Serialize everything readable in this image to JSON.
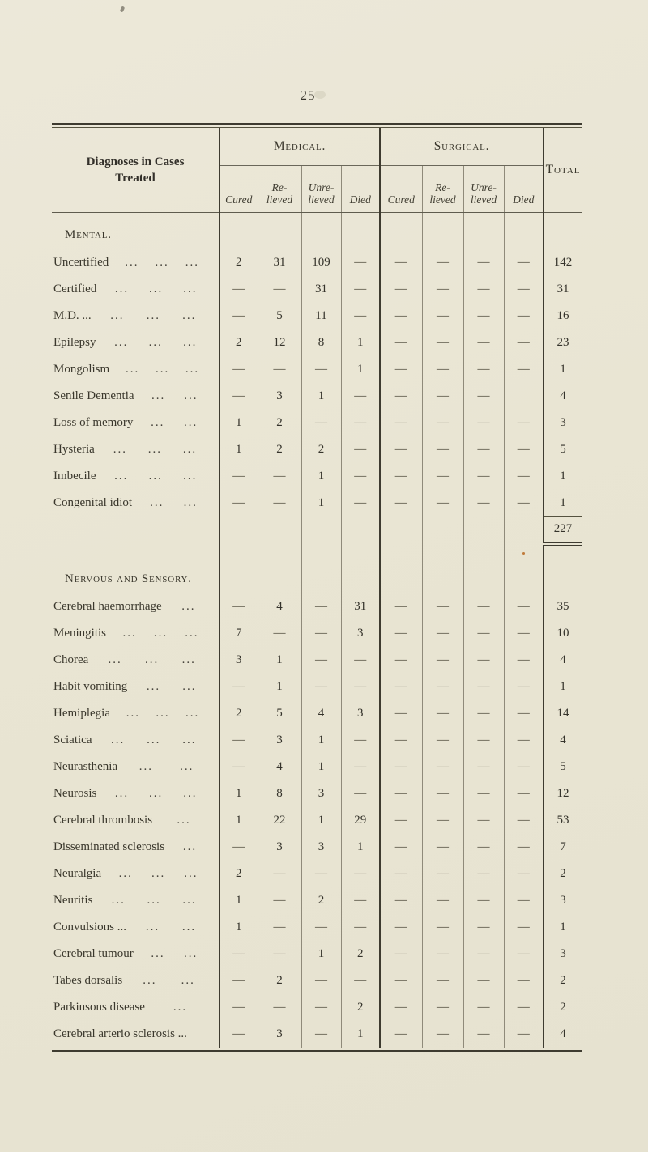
{
  "page": {
    "number": "25"
  },
  "table": {
    "leader_glyph": "...",
    "header": {
      "diagnoses": "Diagnoses in Cases\nTreated",
      "groups": [
        {
          "label": "Medical."
        },
        {
          "label": "Surgical."
        }
      ],
      "subheaders": [
        "Cured",
        "Re-\nlieved",
        "Unre-\nlieved",
        "Died"
      ],
      "total": "Total"
    },
    "columns": [
      "Diagnoses in Cases Treated",
      "Medical Cured",
      "Medical Relieved",
      "Medical Unrelieved",
      "Medical Died",
      "Surgical Cured",
      "Surgical Relieved",
      "Surgical Unrelieved",
      "Surgical Died",
      "Total"
    ],
    "sections": [
      {
        "title": "Mental.",
        "rows": [
          {
            "label": "Uncertified",
            "leaders": 3,
            "cells": [
              "2",
              "31",
              "109",
              "—",
              "—",
              "—",
              "—",
              "—"
            ],
            "total": "142"
          },
          {
            "label": "Certified",
            "leaders": 3,
            "cells": [
              "—",
              "—",
              "31",
              "—",
              "—",
              "—",
              "—",
              "—"
            ],
            "total": "31"
          },
          {
            "label": "M.D. ...",
            "leaders": 3,
            "cells": [
              "—",
              "5",
              "11",
              "—",
              "—",
              "—",
              "—",
              "—"
            ],
            "total": "16"
          },
          {
            "label": "Epilepsy",
            "leaders": 3,
            "cells": [
              "2",
              "12",
              "8",
              "1",
              "—",
              "—",
              "—",
              "—"
            ],
            "total": "23"
          },
          {
            "label": "Mongolism",
            "leaders": 3,
            "cells": [
              "—",
              "—",
              "—",
              "1",
              "—",
              "—",
              "—",
              "—"
            ],
            "total": "1"
          },
          {
            "label": "Senile Dementia",
            "leaders": 2,
            "cells": [
              "—",
              "3",
              "1",
              "—",
              "—",
              "—",
              "—",
              ""
            ],
            "total": "4"
          },
          {
            "label": "Loss of memory",
            "leaders": 2,
            "cells": [
              "1",
              "2",
              "—",
              "—",
              "—",
              "—",
              "—",
              "—"
            ],
            "total": "3"
          },
          {
            "label": "Hysteria",
            "leaders": 3,
            "cells": [
              "1",
              "2",
              "2",
              "—",
              "—",
              "—",
              "—",
              "—"
            ],
            "total": "5"
          },
          {
            "label": "Imbecile",
            "leaders": 3,
            "cells": [
              "—",
              "—",
              "1",
              "—",
              "—",
              "—",
              "—",
              "—"
            ],
            "total": "1"
          },
          {
            "label": "Congenital idiot",
            "leaders": 2,
            "cells": [
              "—",
              "—",
              "1",
              "—",
              "—",
              "—",
              "—",
              "—"
            ],
            "total": "1"
          }
        ],
        "subtotal": "227"
      },
      {
        "title": "Nervous and Sensory.",
        "rows": [
          {
            "label": "Cerebral haemorrhage",
            "leaders": 1,
            "cells": [
              "—",
              "4",
              "—",
              "31",
              "—",
              "—",
              "—",
              "—"
            ],
            "total": "35"
          },
          {
            "label": "Meningitis",
            "leaders": 3,
            "cells": [
              "7",
              "—",
              "—",
              "3",
              "—",
              "—",
              "—",
              "—"
            ],
            "total": "10"
          },
          {
            "label": "Chorea",
            "leaders": 3,
            "cells": [
              "3",
              "1",
              "—",
              "—",
              "—",
              "—",
              "—",
              "—"
            ],
            "total": "4"
          },
          {
            "label": "Habit vomiting",
            "leaders": 2,
            "cells": [
              "—",
              "1",
              "—",
              "—",
              "—",
              "—",
              "—",
              "—"
            ],
            "total": "1"
          },
          {
            "label": "Hemiplegia",
            "leaders": 3,
            "cells": [
              "2",
              "5",
              "4",
              "3",
              "—",
              "—",
              "—",
              "—"
            ],
            "total": "14"
          },
          {
            "label": "Sciatica",
            "leaders": 3,
            "cells": [
              "—",
              "3",
              "1",
              "—",
              "—",
              "—",
              "—",
              "—"
            ],
            "total": "4"
          },
          {
            "label": "Neurasthenia",
            "leaders": 2,
            "cells": [
              "—",
              "4",
              "1",
              "—",
              "—",
              "—",
              "—",
              "—"
            ],
            "total": "5"
          },
          {
            "label": "Neurosis",
            "leaders": 3,
            "cells": [
              "1",
              "8",
              "3",
              "—",
              "—",
              "—",
              "—",
              "—"
            ],
            "total": "12"
          },
          {
            "label": "Cerebral thrombosis",
            "leaders": 1,
            "cells": [
              "1",
              "22",
              "1",
              "29",
              "—",
              "—",
              "—",
              "—"
            ],
            "total": "53"
          },
          {
            "label": "Disseminated sclerosis",
            "leaders": 1,
            "cells": [
              "—",
              "3",
              "3",
              "1",
              "—",
              "—",
              "—",
              "—"
            ],
            "total": "7"
          },
          {
            "label": "Neuralgia",
            "leaders": 3,
            "cells": [
              "2",
              "—",
              "—",
              "—",
              "—",
              "—",
              "—",
              "—"
            ],
            "total": "2"
          },
          {
            "label": "Neuritis",
            "leaders": 3,
            "cells": [
              "1",
              "—",
              "2",
              "—",
              "—",
              "—",
              "—",
              "—"
            ],
            "total": "3"
          },
          {
            "label": "Convulsions ...",
            "leaders": 2,
            "cells": [
              "1",
              "—",
              "—",
              "—",
              "—",
              "—",
              "—",
              "—"
            ],
            "total": "1"
          },
          {
            "label": "Cerebral tumour",
            "leaders": 2,
            "cells": [
              "—",
              "—",
              "1",
              "2",
              "—",
              "—",
              "—",
              "—"
            ],
            "total": "3"
          },
          {
            "label": "Tabes dorsalis",
            "leaders": 2,
            "cells": [
              "—",
              "2",
              "—",
              "—",
              "—",
              "—",
              "—",
              "—"
            ],
            "total": "2"
          },
          {
            "label": "Parkinsons disease",
            "leaders": 1,
            "cells": [
              "—",
              "—",
              "—",
              "2",
              "—",
              "—",
              "—",
              "—"
            ],
            "total": "2"
          },
          {
            "label": "Cerebral arterio sclerosis ...",
            "leaders": 0,
            "cells": [
              "—",
              "3",
              "—",
              "1",
              "—",
              "—",
              "—",
              "—"
            ],
            "total": "4"
          }
        ]
      }
    ]
  }
}
